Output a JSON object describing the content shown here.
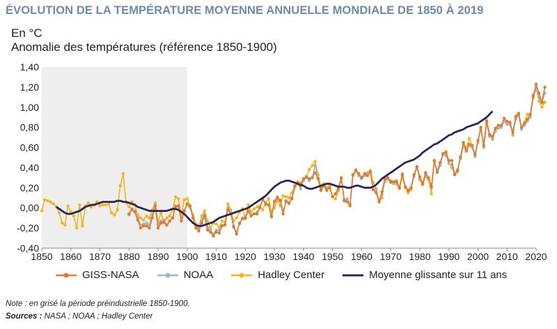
{
  "title": "ÉVOLUTION DE LA TEMPÉRATURE MOYENNE ANNUELLE MONDIALE DE 1850 À 2019",
  "unit_label": "En °C",
  "y_axis_label": "Anomalie des températures (référence 1850-1900)",
  "note": "Note : en grisé la période préindustrielle 1850-1900.",
  "sources_label": "Sources :",
  "sources_text": " NASA ; NOAA ; Hadley Center",
  "colors": {
    "giss": "#e07b2c",
    "noaa": "#9fb7c9",
    "hadley": "#f5b31b",
    "moyenne": "#27245f",
    "shade": "#eeeeee",
    "title": "#6e8aa5"
  },
  "chart_data": {
    "type": "line",
    "ylim": [
      -0.4,
      1.4
    ],
    "xlim": [
      1850,
      2020
    ],
    "y_ticks": [
      "-0,40",
      "-0,20",
      "0,00",
      "0,20",
      "0,40",
      "0,60",
      "0,80",
      "1,00",
      "1,20",
      "1,40"
    ],
    "x_ticks": [
      "1850",
      "1860",
      "1870",
      "1880",
      "1890",
      "1900",
      "1910",
      "1920",
      "1930",
      "1940",
      "1950",
      "1960",
      "1970",
      "1980",
      "1990",
      "2000",
      "2010",
      "2020"
    ],
    "shaded_period": [
      1850,
      1900
    ],
    "series": [
      {
        "name": "Hadley Center",
        "x_start": 1850,
        "values": [
          -0.03,
          0.08,
          0.07,
          0.06,
          0.04,
          0.01,
          -0.05,
          -0.15,
          -0.17,
          0.02,
          -0.04,
          -0.08,
          -0.2,
          0.03,
          -0.18,
          0.02,
          0.05,
          0.01,
          0.03,
          0.06,
          0.02,
          0.03,
          0.03,
          0.04,
          -0.05,
          -0.07,
          -0.02,
          0.22,
          0.34,
          0.05,
          0.01,
          0.06,
          0.03,
          -0.07,
          -0.1,
          -0.12,
          -0.08,
          -0.1,
          -0.02,
          0.05,
          -0.14,
          -0.05,
          -0.15,
          -0.1,
          -0.08,
          -0.02,
          0.11,
          0.09,
          -0.09,
          0.08,
          0.09,
          0.02,
          -0.07,
          -0.16,
          -0.19,
          -0.08,
          -0.03,
          -0.13,
          -0.2,
          -0.15,
          -0.16,
          -0.19,
          -0.13,
          -0.14,
          0.04,
          -0.02,
          -0.13,
          -0.1,
          -0.04,
          -0.01,
          -0.11,
          0.03,
          -0.04,
          -0.01,
          0.01,
          0.02,
          -0.02,
          0.05,
          0.09,
          -0.03,
          0.0,
          0.07,
          0.02,
          0.12,
          0.11,
          0.1,
          0.15,
          0.22,
          0.26,
          0.25,
          0.28,
          0.31,
          0.38,
          0.42,
          0.46,
          0.33,
          0.21,
          0.24,
          0.2,
          0.22,
          0.11,
          0.09,
          0.17,
          0.29,
          0.08,
          0.08,
          0.04,
          0.32,
          0.38,
          0.34,
          0.29,
          0.33,
          0.35,
          0.37,
          0.25,
          0.19,
          0.06,
          0.1,
          0.28,
          0.28,
          0.27,
          0.25,
          0.24,
          0.19,
          0.31,
          0.2,
          0.15,
          0.18,
          0.33,
          0.4,
          0.28,
          0.23,
          0.31,
          0.28,
          0.14,
          0.47,
          0.35,
          0.44,
          0.53,
          0.56,
          0.47,
          0.4,
          0.33,
          0.36,
          0.51,
          0.64,
          0.6,
          0.69,
          0.62,
          0.52,
          0.67,
          0.78,
          0.61,
          0.87,
          0.72,
          0.68,
          0.78,
          0.79,
          0.8,
          0.86,
          0.83,
          0.84,
          0.72,
          0.9,
          0.93,
          0.8,
          0.85,
          0.93,
          0.91,
          1.12,
          1.19,
          1.06,
          1.0,
          1.05
        ]
      },
      {
        "name": "NOAA",
        "x_start": 1880,
        "values": [
          -0.07,
          -0.02,
          -0.03,
          -0.1,
          -0.17,
          -0.16,
          -0.15,
          -0.17,
          -0.07,
          0.03,
          -0.17,
          -0.13,
          -0.12,
          -0.17,
          -0.13,
          -0.1,
          0.02,
          0.01,
          -0.13,
          -0.03,
          0.03,
          0.0,
          -0.09,
          -0.18,
          -0.21,
          -0.12,
          -0.06,
          -0.19,
          -0.22,
          -0.26,
          -0.22,
          -0.22,
          -0.17,
          -0.17,
          0.0,
          -0.04,
          -0.18,
          -0.24,
          -0.16,
          -0.1,
          -0.08,
          -0.04,
          -0.07,
          -0.06,
          -0.04,
          0.0,
          0.08,
          0.03,
          0.03,
          -0.08,
          0.07,
          0.11,
          0.08,
          -0.03,
          0.06,
          0.04,
          0.1,
          0.2,
          0.24,
          0.19,
          0.27,
          0.3,
          0.27,
          0.3,
          0.42,
          0.3,
          0.17,
          0.22,
          0.17,
          0.2,
          0.11,
          0.14,
          0.21,
          0.29,
          0.08,
          0.09,
          0.04,
          0.33,
          0.36,
          0.32,
          0.29,
          0.32,
          0.34,
          0.35,
          0.18,
          0.17,
          0.08,
          0.13,
          0.26,
          0.29,
          0.25,
          0.24,
          0.27,
          0.2,
          0.34,
          0.21,
          0.18,
          0.2,
          0.31,
          0.4,
          0.3,
          0.25,
          0.33,
          0.3,
          0.2,
          0.46,
          0.35,
          0.42,
          0.53,
          0.52,
          0.44,
          0.43,
          0.34,
          0.38,
          0.49,
          0.61,
          0.56,
          0.62,
          0.6,
          0.51,
          0.65,
          0.79,
          0.6,
          0.84,
          0.71,
          0.69,
          0.76,
          0.8,
          0.8,
          0.86,
          0.83,
          0.83,
          0.73,
          0.88,
          0.92,
          0.78,
          0.82,
          0.86,
          0.9,
          1.09,
          1.18,
          1.1,
          1.04,
          1.14
        ]
      },
      {
        "name": "GISS-NASA",
        "x_start": 1880,
        "values": [
          -0.06,
          -0.01,
          -0.04,
          -0.12,
          -0.2,
          -0.18,
          -0.18,
          -0.2,
          -0.1,
          0.02,
          -0.2,
          -0.15,
          -0.14,
          -0.17,
          -0.13,
          -0.1,
          0.01,
          0.02,
          -0.13,
          -0.03,
          0.04,
          0.02,
          -0.1,
          -0.2,
          -0.23,
          -0.15,
          -0.08,
          -0.22,
          -0.24,
          -0.28,
          -0.24,
          -0.25,
          -0.18,
          -0.17,
          -0.02,
          -0.06,
          -0.19,
          -0.26,
          -0.15,
          -0.11,
          -0.1,
          -0.03,
          -0.08,
          -0.06,
          -0.06,
          0.0,
          0.09,
          0.04,
          0.03,
          -0.09,
          0.06,
          0.1,
          0.07,
          -0.06,
          0.07,
          0.05,
          0.09,
          0.22,
          0.24,
          0.22,
          0.29,
          0.31,
          0.29,
          0.3,
          0.35,
          0.29,
          0.18,
          0.22,
          0.18,
          0.2,
          0.11,
          0.14,
          0.19,
          0.3,
          0.07,
          0.06,
          0.02,
          0.33,
          0.37,
          0.34,
          0.3,
          0.34,
          0.32,
          0.36,
          0.18,
          0.15,
          0.06,
          0.16,
          0.29,
          0.3,
          0.26,
          0.26,
          0.26,
          0.2,
          0.33,
          0.21,
          0.17,
          0.2,
          0.33,
          0.41,
          0.31,
          0.24,
          0.35,
          0.3,
          0.21,
          0.47,
          0.36,
          0.45,
          0.54,
          0.55,
          0.47,
          0.47,
          0.33,
          0.37,
          0.5,
          0.65,
          0.57,
          0.63,
          0.62,
          0.53,
          0.67,
          0.8,
          0.62,
          0.86,
          0.73,
          0.71,
          0.79,
          0.82,
          0.82,
          0.89,
          0.86,
          0.85,
          0.75,
          0.91,
          0.94,
          0.8,
          0.84,
          0.88,
          0.93,
          1.11,
          1.23,
          1.14,
          1.05,
          1.2
        ]
      },
      {
        "name": "Moyenne glissante sur 11 ans",
        "x_start": 1855,
        "values": [
          0.01,
          -0.01,
          -0.03,
          -0.05,
          -0.06,
          -0.06,
          -0.05,
          -0.04,
          -0.03,
          -0.01,
          0.01,
          0.02,
          0.03,
          0.03,
          0.04,
          0.05,
          0.06,
          0.06,
          0.06,
          0.06,
          0.06,
          0.07,
          0.07,
          0.06,
          0.06,
          0.05,
          0.04,
          0.03,
          0.01,
          0.0,
          -0.01,
          -0.02,
          -0.03,
          -0.03,
          -0.03,
          -0.03,
          -0.03,
          -0.03,
          -0.03,
          -0.02,
          -0.01,
          -0.01,
          -0.02,
          -0.04,
          -0.06,
          -0.09,
          -0.12,
          -0.15,
          -0.17,
          -0.18,
          -0.18,
          -0.17,
          -0.16,
          -0.15,
          -0.14,
          -0.12,
          -0.1,
          -0.09,
          -0.08,
          -0.07,
          -0.06,
          -0.05,
          -0.04,
          -0.03,
          -0.02,
          -0.01,
          0.0,
          0.02,
          0.04,
          0.06,
          0.08,
          0.1,
          0.12,
          0.15,
          0.18,
          0.21,
          0.23,
          0.25,
          0.26,
          0.27,
          0.27,
          0.26,
          0.25,
          0.24,
          0.23,
          0.22,
          0.2,
          0.19,
          0.19,
          0.2,
          0.21,
          0.22,
          0.23,
          0.24,
          0.24,
          0.23,
          0.22,
          0.21,
          0.21,
          0.21,
          0.2,
          0.2,
          0.21,
          0.22,
          0.22,
          0.21,
          0.2,
          0.2,
          0.2,
          0.21,
          0.23,
          0.26,
          0.29,
          0.31,
          0.33,
          0.35,
          0.37,
          0.39,
          0.41,
          0.43,
          0.45,
          0.46,
          0.47,
          0.48,
          0.5,
          0.52,
          0.55,
          0.57,
          0.59,
          0.61,
          0.63,
          0.64,
          0.66,
          0.68,
          0.7,
          0.72,
          0.73,
          0.75,
          0.76,
          0.77,
          0.78,
          0.8,
          0.81,
          0.82,
          0.83,
          0.84,
          0.86,
          0.88,
          0.9,
          0.93,
          0.96
        ]
      }
    ]
  }
}
